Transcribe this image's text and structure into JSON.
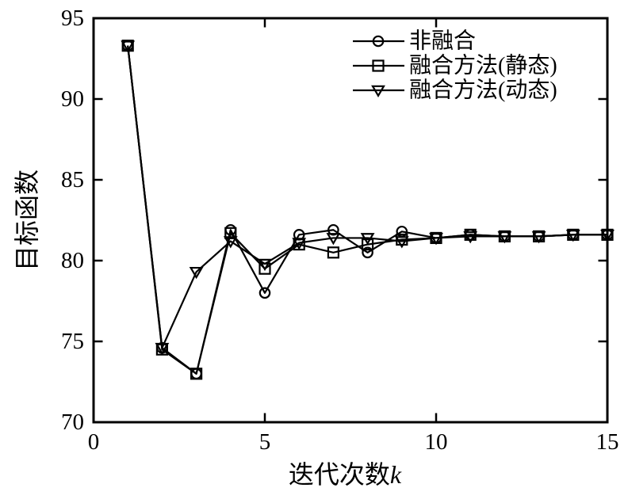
{
  "figure": {
    "background": "#ffffff",
    "foreground": "#000000"
  },
  "chart_data": {
    "type": "line",
    "title": "",
    "xlabel": {
      "text": "迭代次数",
      "variable": "k"
    },
    "ylabel": "目标函数",
    "xlim": [
      0,
      15
    ],
    "ylim": [
      70,
      95
    ],
    "xticks": [
      0,
      5,
      10,
      15
    ],
    "yticks": [
      70,
      75,
      80,
      85,
      90,
      95
    ],
    "grid": false,
    "legend_position": "top-right-inside",
    "legend_frame": false,
    "line_color": "#000000",
    "x": [
      1,
      2,
      3,
      4,
      5,
      6,
      7,
      8,
      9,
      10,
      11,
      12,
      13,
      14,
      15
    ],
    "series": [
      {
        "name": "非融合",
        "marker": "circle",
        "color": "#000000",
        "values": [
          93.3,
          74.6,
          73.0,
          81.9,
          78.0,
          81.6,
          81.9,
          80.5,
          81.8,
          81.4,
          81.6,
          81.5,
          81.5,
          81.6,
          81.6
        ]
      },
      {
        "name": "融合方法(静态)",
        "marker": "square",
        "color": "#000000",
        "values": [
          93.3,
          74.5,
          73.0,
          81.7,
          79.5,
          81.0,
          80.5,
          81.0,
          81.3,
          81.4,
          81.6,
          81.5,
          81.5,
          81.6,
          81.6
        ]
      },
      {
        "name": "融合方法(动态)",
        "marker": "triangle-down",
        "color": "#000000",
        "values": [
          93.3,
          74.6,
          79.3,
          81.2,
          79.8,
          81.1,
          81.4,
          81.4,
          81.2,
          81.4,
          81.5,
          81.5,
          81.5,
          81.6,
          81.6
        ]
      }
    ]
  }
}
